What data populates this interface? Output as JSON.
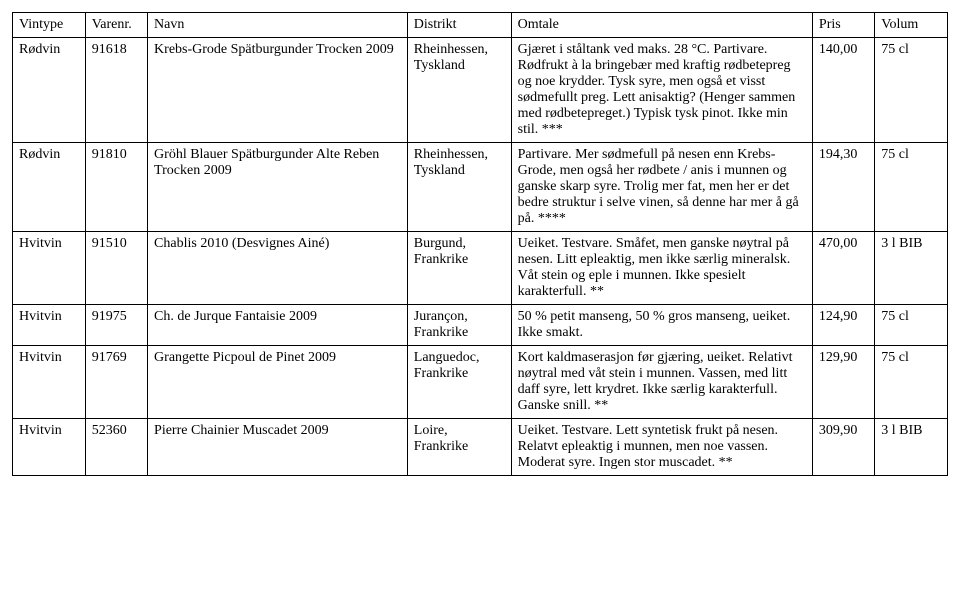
{
  "table": {
    "columns": [
      "Vintype",
      "Varenr.",
      "Navn",
      "Distrikt",
      "Omtale",
      "Pris",
      "Volum"
    ],
    "rows": [
      {
        "vintype": "Rødvin",
        "varenr": "91618",
        "navn": "Krebs-Grode Spätburgunder Trocken 2009",
        "distrikt": "Rheinhessen, Tyskland",
        "omtale": "Gjæret i ståltank ved maks. 28 °C. Partivare. Rødfrukt à la bringebær med kraftig rødbetepreg og noe krydder. Tysk syre, men også et visst sødmefullt preg. Lett anisaktig? (Henger sammen med rødbetepreget.) Typisk tysk pinot. Ikke min stil. ***",
        "pris": "140,00",
        "volum": "75 cl"
      },
      {
        "vintype": "Rødvin",
        "varenr": "91810",
        "navn": "Gröhl Blauer Spätburgunder Alte Reben Trocken 2009",
        "distrikt": "Rheinhessen, Tyskland",
        "omtale": "Partivare. Mer sødmefull på nesen enn Krebs-Grode, men også her rødbete / anis i munnen og ganske skarp syre. Trolig mer fat, men her er det bedre struktur i selve vinen, så denne har mer å gå på. ****",
        "pris": "194,30",
        "volum": "75 cl"
      },
      {
        "vintype": "Hvitvin",
        "varenr": "91510",
        "navn": "Chablis 2010 (Desvignes Ainé)",
        "distrikt": "Burgund, Frankrike",
        "omtale": "Ueiket. Testvare. Småfet, men ganske nøytral på nesen. Litt epleaktig, men ikke særlig mineralsk. Våt stein og eple i munnen. Ikke spesielt karakterfull. **",
        "pris": "470,00",
        "volum": "3 l BIB"
      },
      {
        "vintype": "Hvitvin",
        "varenr": "91975",
        "navn": "Ch. de Jurque Fantaisie 2009",
        "distrikt": "Jurançon, Frankrike",
        "omtale": "50 % petit manseng, 50  % gros manseng, ueiket. Ikke smakt.",
        "pris": "124,90",
        "volum": "75 cl"
      },
      {
        "vintype": "Hvitvin",
        "varenr": "91769",
        "navn": "Grangette Picpoul de Pinet 2009",
        "distrikt": "Languedoc, Frankrike",
        "omtale": "Kort kaldmaserasjon før gjæring, ueiket. Relativt nøytral med våt stein i munnen. Vassen, med litt daff syre, lett krydret. Ikke særlig karakterfull. Ganske snill. **",
        "pris": "129,90",
        "volum": "75 cl"
      },
      {
        "vintype": "Hvitvin",
        "varenr": "52360",
        "navn": "Pierre Chainier Muscadet 2009",
        "distrikt": "Loire, Frankrike",
        "omtale": "Ueiket. Testvare. Lett syntetisk frukt på nesen. Relatvt epleaktig i munnen, men noe vassen. Moderat syre. Ingen stor muscadet. **",
        "pris": "309,90",
        "volum": "3 l BIB"
      }
    ]
  }
}
